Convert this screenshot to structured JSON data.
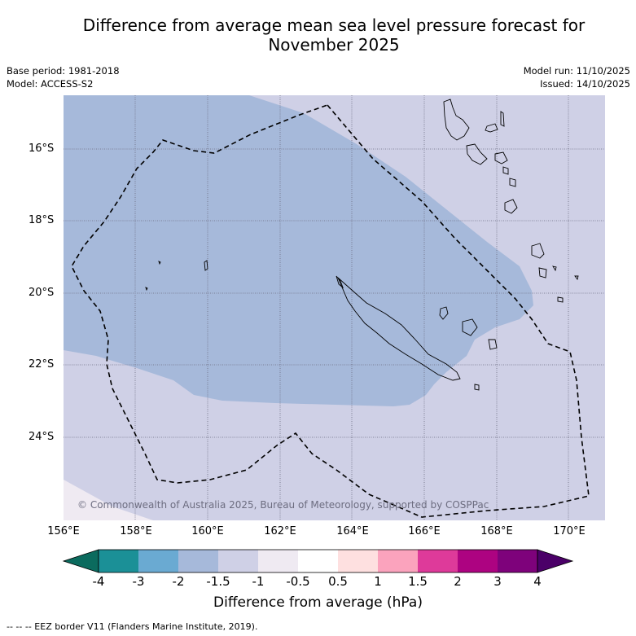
{
  "title_line1": "Difference from average mean sea level pressure forecast for",
  "title_line2": "November 2025",
  "base_period": "Base period: 1981-2018",
  "model": "Model: ACCESS-S2",
  "model_run": "Model run: 11/10/2025",
  "issued": "Issued: 14/10/2025",
  "copyright": "© Commonwealth of Australia 2025, Bureau of Meteorology, supported by COSPPac",
  "lat_labels": [
    "16°S",
    "18°S",
    "20°S",
    "22°S",
    "24°S"
  ],
  "lon_labels": [
    "156°E",
    "158°E",
    "160°E",
    "162°E",
    "164°E",
    "166°E",
    "168°E",
    "170°E"
  ],
  "colorbar": {
    "ticks": [
      "-4",
      "-3",
      "-2",
      "-1.5",
      "-1",
      "-0.5",
      "0.5",
      "1",
      "1.5",
      "2",
      "3",
      "4"
    ],
    "colors": [
      "#1b9097",
      "#6aaad2",
      "#a6b9da",
      "#cfd0e6",
      "#efeaf2",
      "#ffffff",
      "#fee0e0",
      "#fba3bd",
      "#de3a9a",
      "#ad0381",
      "#7e027b"
    ],
    "under_color": "#0b6b5e",
    "over_color": "#4b0068",
    "label": "Difference from average (hPa)"
  },
  "legend_note": "--  --  -- EEZ border V11 (Flanders Marine Institute, 2019)."
}
